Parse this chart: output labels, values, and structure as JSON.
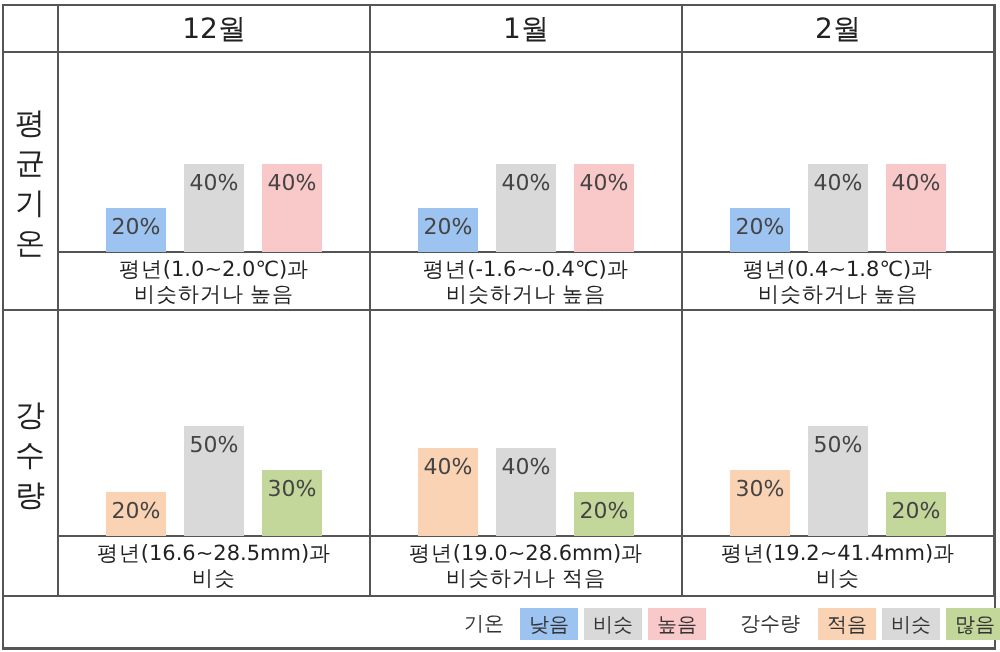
{
  "chart_data": [
    {
      "type": "bar",
      "title": "12월",
      "ylabel": "평균기온",
      "xlabel": "평년(1.0~2.0℃)과\n비슷하거나 높음",
      "categories": [
        null
      ],
      "legend": "bottom",
      "legend_title": "기온",
      "series": [
        {
          "name": "낮음",
          "color": "#9dc3f0",
          "values": [
            20
          ],
          "value_labels": [
            "20%"
          ]
        },
        {
          "name": "비슷",
          "color": "#d9d9d9",
          "values": [
            40
          ],
          "value_labels": [
            "40%"
          ]
        },
        {
          "name": "높음",
          "color": "#f9c8c8",
          "values": [
            40
          ],
          "value_labels": [
            "40%"
          ]
        }
      ]
    },
    {
      "type": "bar",
      "title": "1월",
      "xlabel": "평년(-1.6~-0.4℃)과\n비슷하거나 높음",
      "categories": [
        null
      ],
      "series": [
        {
          "color": "#9dc3f0",
          "values": [
            20
          ],
          "value_labels": [
            "20%"
          ]
        },
        {
          "color": "#d9d9d9",
          "values": [
            40
          ],
          "value_labels": [
            "40%"
          ]
        },
        {
          "color": "#f9c8c8",
          "values": [
            40
          ],
          "value_labels": [
            "40%"
          ]
        }
      ]
    },
    {
      "type": "bar",
      "title": "2월",
      "xlabel": "평년(0.4~1.8℃)과\n비슷하거나 높음",
      "categories": [
        null
      ],
      "series": [
        {
          "color": "#9dc3f0",
          "values": [
            20
          ],
          "value_labels": [
            "20%"
          ]
        },
        {
          "color": "#d9d9d9",
          "values": [
            40
          ],
          "value_labels": [
            "40%"
          ]
        },
        {
          "color": "#f9c8c8",
          "values": [
            40
          ],
          "value_labels": [
            "40%"
          ]
        }
      ]
    },
    {
      "type": "bar",
      "ylabel": "강수량",
      "xlabel": "평년(16.6~28.5mm)과\n비슷",
      "categories": [
        null
      ],
      "legend": "bottom",
      "legend_title": "강수량",
      "series": [
        {
          "name": "적음",
          "color": "#fad3b5",
          "values": [
            20
          ],
          "value_labels": [
            "20%"
          ]
        },
        {
          "name": "비슷",
          "color": "#d9d9d9",
          "values": [
            50
          ],
          "value_labels": [
            "50%"
          ]
        },
        {
          "name": "많음",
          "color": "#c3d79b",
          "values": [
            30
          ],
          "value_labels": [
            "30%"
          ]
        }
      ]
    },
    {
      "type": "bar",
      "xlabel": "평년(19.0~28.6mm)과\n비슷하거나 적음",
      "categories": [
        null
      ],
      "series": [
        {
          "color": "#fad3b5",
          "values": [
            40
          ],
          "value_labels": [
            "40%"
          ]
        },
        {
          "color": "#d9d9d9",
          "values": [
            40
          ],
          "value_labels": [
            "40%"
          ]
        },
        {
          "color": "#c3d79b",
          "values": [
            20
          ],
          "value_labels": [
            "20%"
          ]
        }
      ]
    },
    {
      "type": "bar",
      "xlabel": "평년(19.2~41.4mm)과\n비슷",
      "categories": [
        null
      ],
      "series": [
        {
          "color": "#fad3b5",
          "values": [
            30
          ],
          "value_labels": [
            "30%"
          ]
        },
        {
          "color": "#d9d9d9",
          "values": [
            50
          ],
          "value_labels": [
            "50%"
          ]
        },
        {
          "color": "#c3d79b",
          "values": [
            20
          ],
          "value_labels": [
            "20%"
          ]
        }
      ]
    }
  ]
}
